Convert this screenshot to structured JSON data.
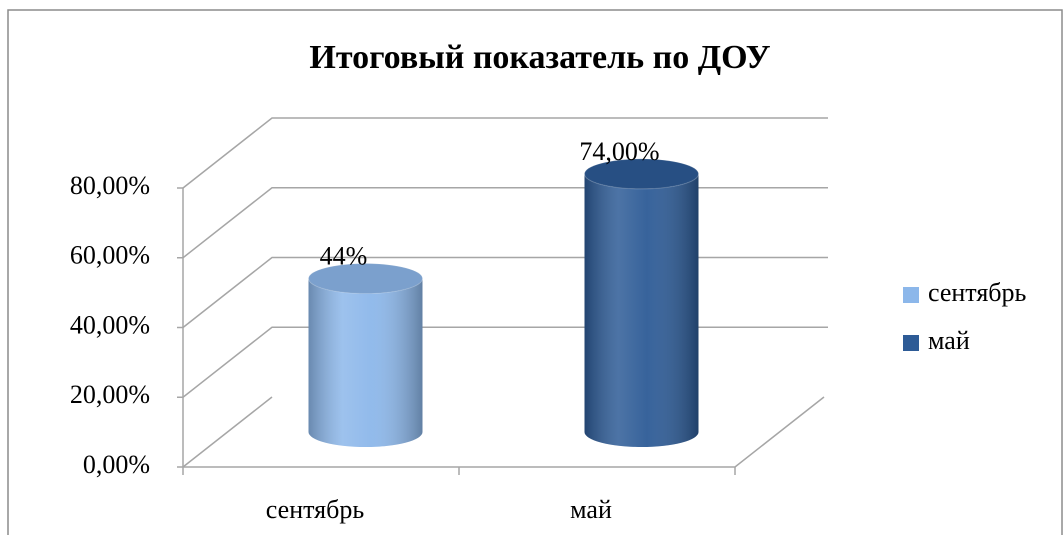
{
  "chart_data": {
    "type": "bar3d",
    "title": "Итоговый показатель по ДОУ",
    "categories": [
      "сентябрь",
      "май"
    ],
    "values": [
      44,
      74
    ],
    "value_labels": [
      "44%",
      "74,00%"
    ],
    "colors": [
      "#8cb7ea",
      "#2d5b96"
    ],
    "ylim": [
      0,
      80
    ],
    "yticks": [
      {
        "value": 0,
        "label": "0,00%"
      },
      {
        "value": 20,
        "label": "20,00%"
      },
      {
        "value": 40,
        "label": "40,00%"
      },
      {
        "value": 60,
        "label": "60,00%"
      },
      {
        "value": 80,
        "label": "80,00%"
      }
    ],
    "grid": true,
    "legend": "right"
  }
}
